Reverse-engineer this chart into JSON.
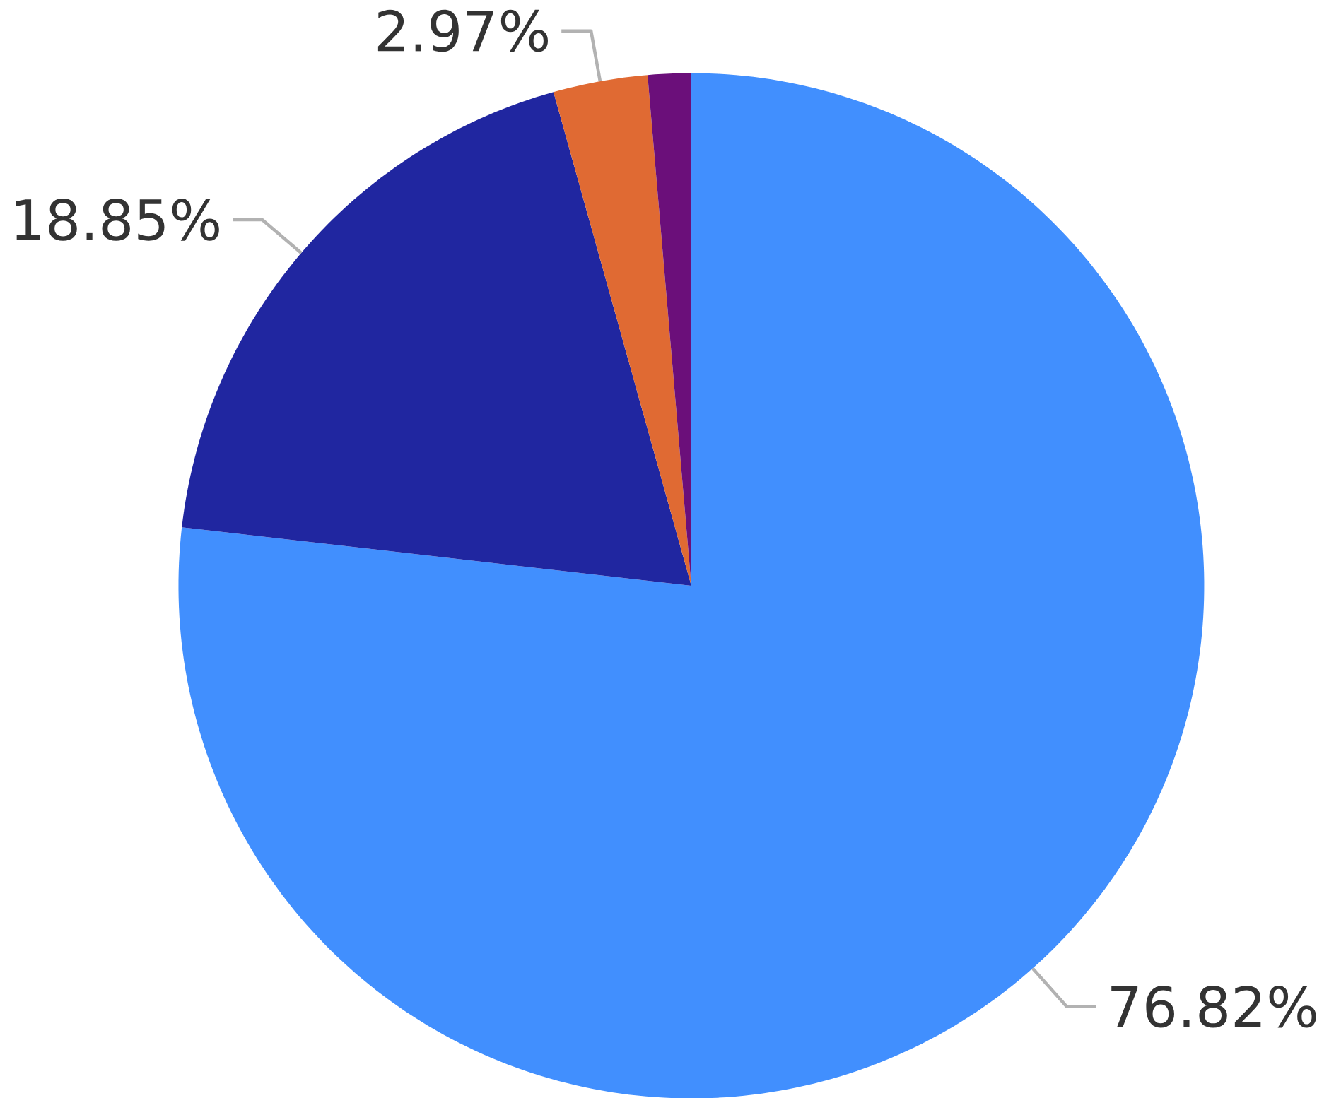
{
  "chart_data": {
    "type": "pie",
    "categories": [
      null,
      null,
      null,
      null
    ],
    "values": [
      76.82,
      18.85,
      2.97,
      1.36
    ],
    "colors": [
      "#418ffe",
      "#2026a0",
      "#e06a33",
      "#6b0f7a"
    ],
    "value_labels": [
      "76.82%",
      "18.85%",
      "2.97%",
      null
    ]
  }
}
